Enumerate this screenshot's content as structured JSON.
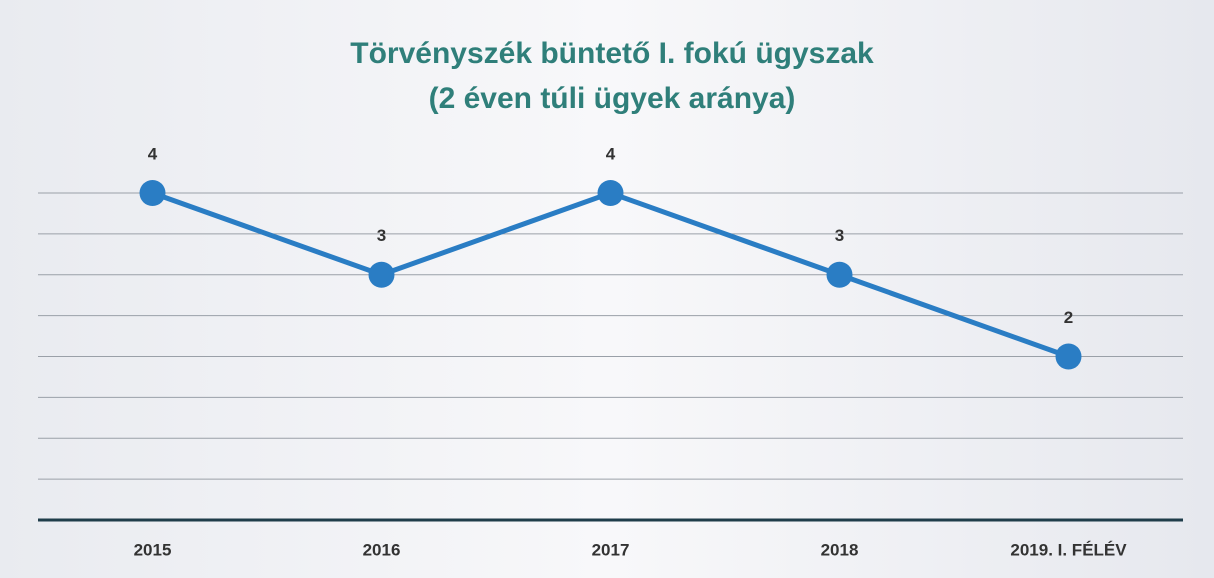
{
  "chart_data": {
    "type": "line",
    "title": [
      "Törvényszék büntető I. fokú ügyszak",
      "(2 éven túli ügyek aránya)"
    ],
    "categories": [
      "2015",
      "2016",
      "2017",
      "2018",
      "2019. I. FÉLÉV"
    ],
    "series": [
      {
        "color": "#2a7dc4",
        "values": [
          4,
          3,
          4,
          3,
          2
        ]
      }
    ],
    "ylim": [
      0,
      4
    ],
    "yticks": [
      0,
      0.5,
      1,
      1.5,
      2,
      2.5,
      3,
      3.5,
      4
    ],
    "grid": true
  }
}
